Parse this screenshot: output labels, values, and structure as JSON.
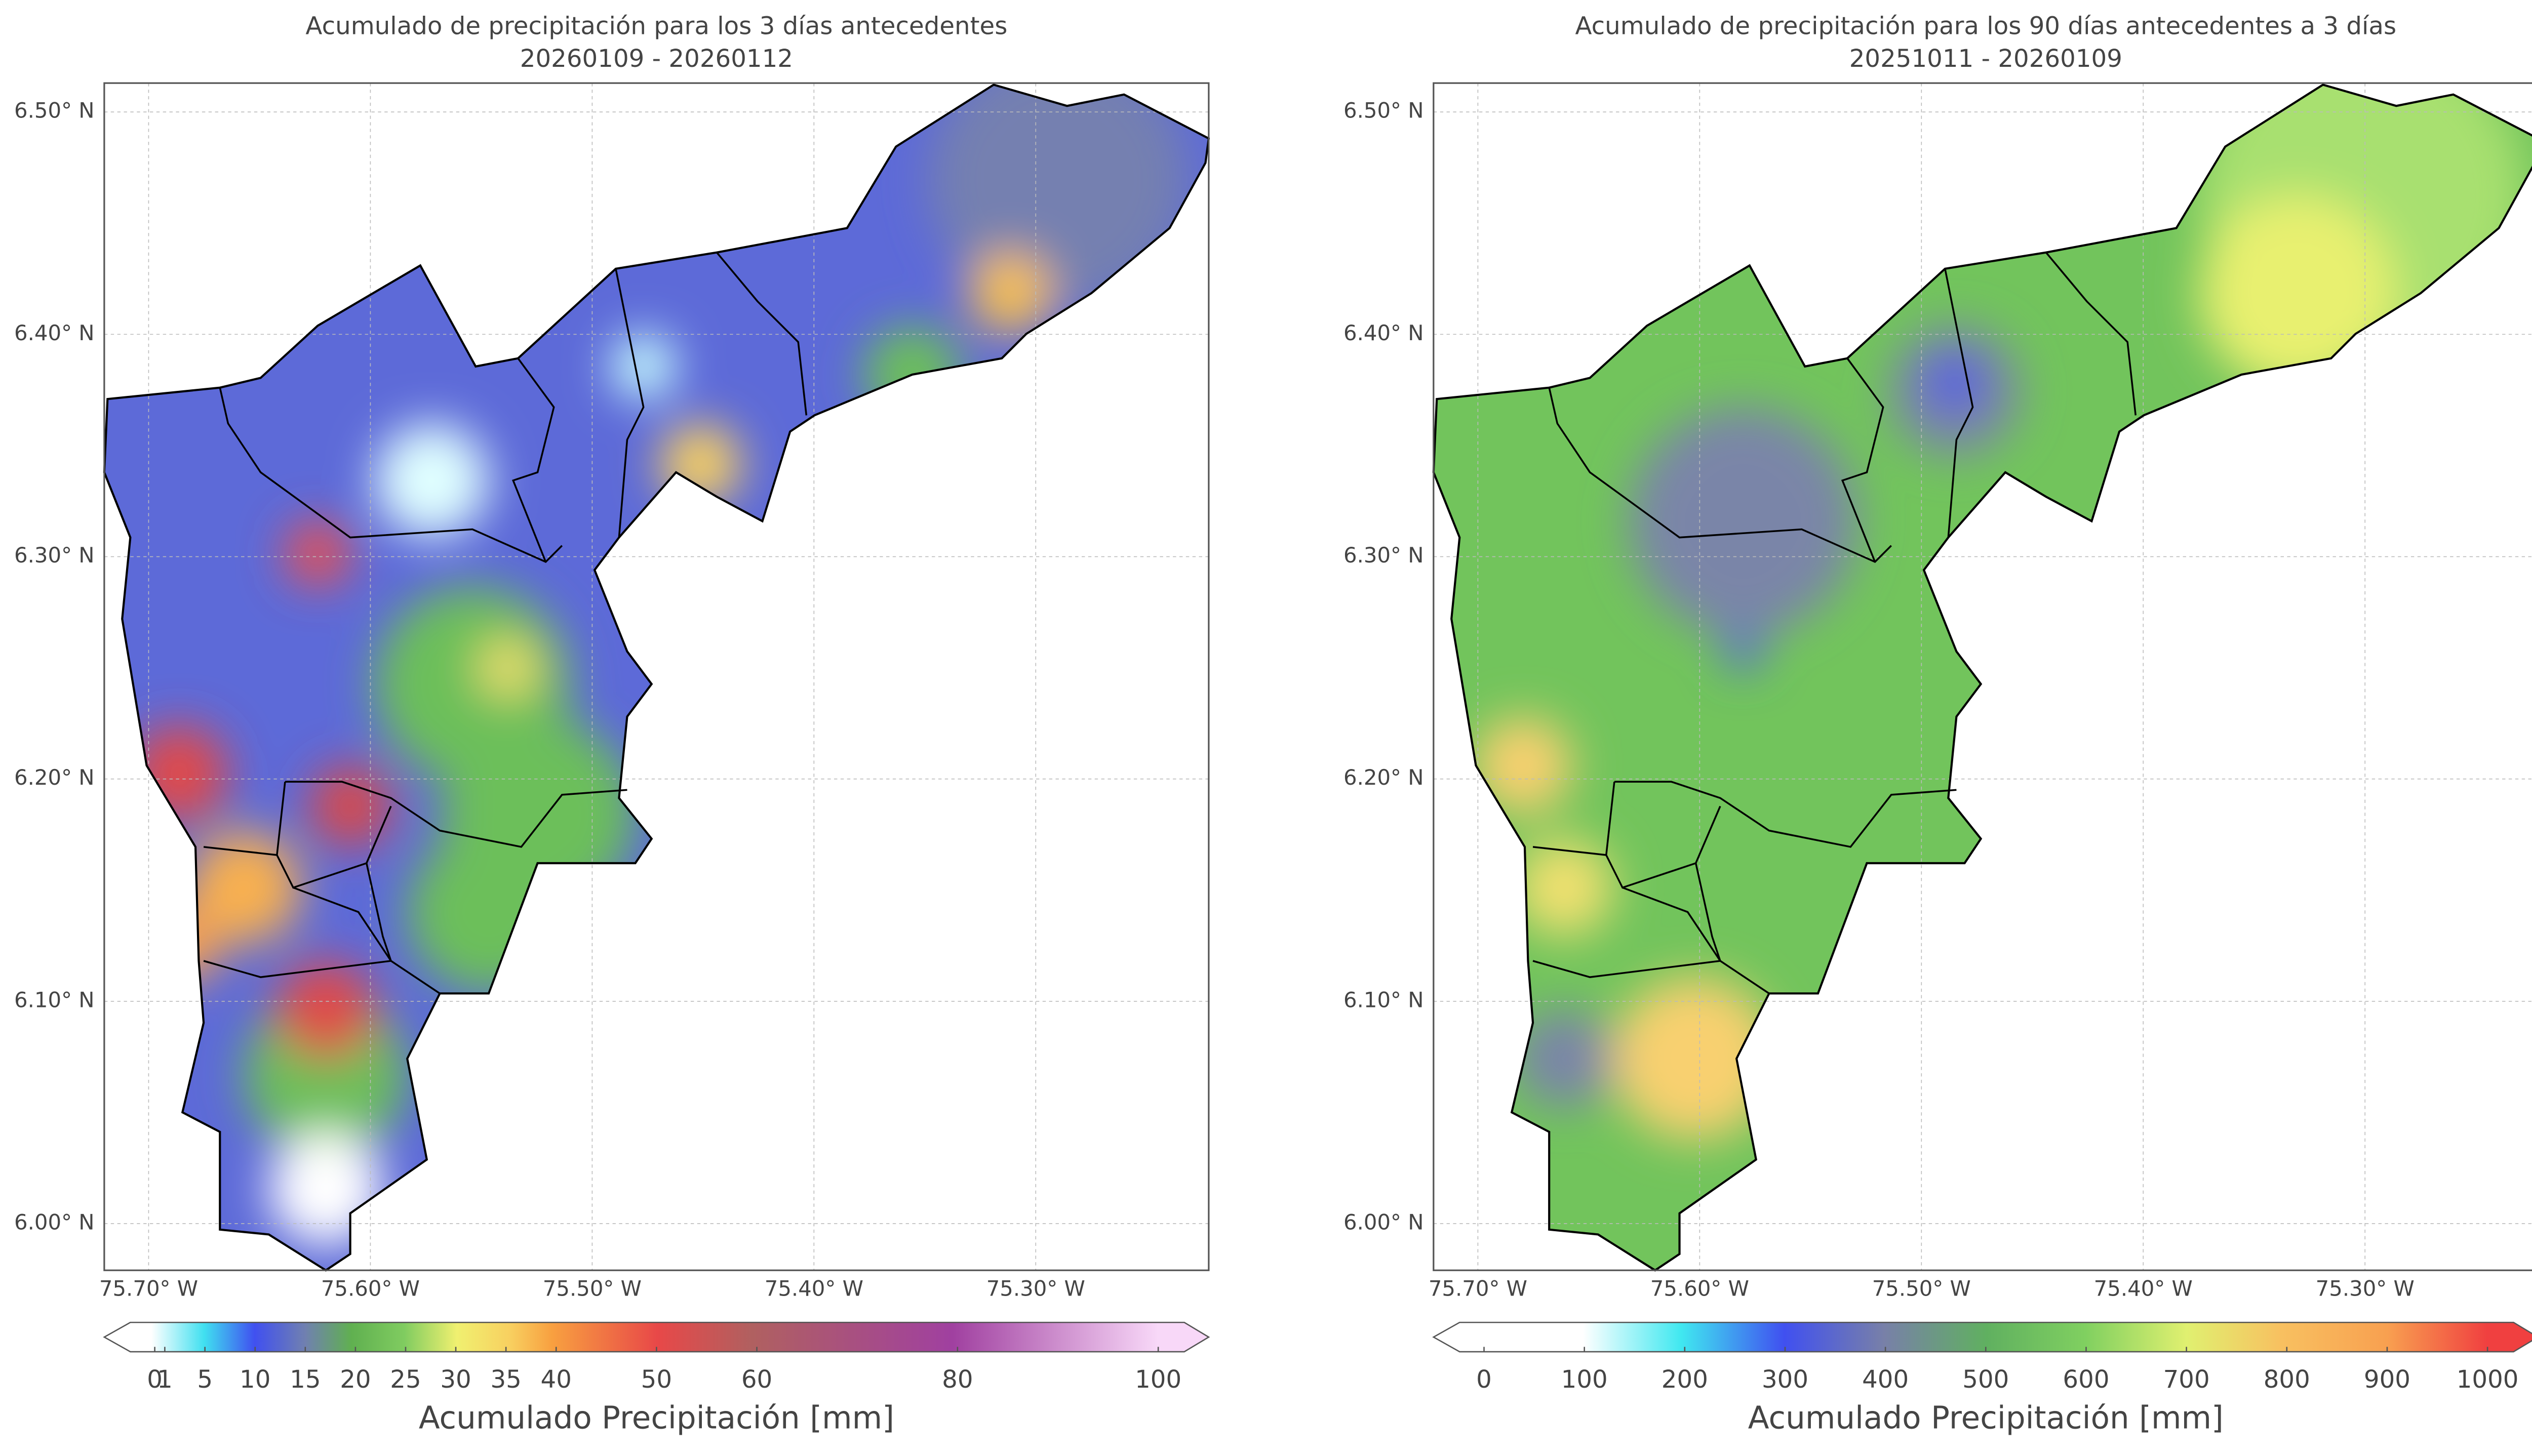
{
  "panels": [
    {
      "title": "Acumulado de precipitación para los 3 días antecedentes",
      "subtitle": "20260109 - 20260112",
      "xlim": [
        -75.72,
        -75.222
      ],
      "ylim": [
        5.979,
        6.513
      ],
      "xticks": [
        {
          "value": -75.7,
          "label": "75.70° W"
        },
        {
          "value": -75.6,
          "label": "75.60° W"
        },
        {
          "value": -75.5,
          "label": "75.50° W"
        },
        {
          "value": -75.4,
          "label": "75.40° W"
        },
        {
          "value": -75.3,
          "label": "75.30° W"
        }
      ],
      "yticks": [
        {
          "value": 6.0,
          "label": "6.00° N"
        },
        {
          "value": 6.1,
          "label": "6.10° N"
        },
        {
          "value": 6.2,
          "label": "6.20° N"
        },
        {
          "value": 6.3,
          "label": "6.30° N"
        },
        {
          "value": 6.4,
          "label": "6.40° N"
        },
        {
          "value": 6.5,
          "label": "6.50° N"
        }
      ],
      "colorbar": {
        "label": "Acumulado Precipitación [mm]",
        "lim": [
          0,
          100
        ],
        "ticks": [
          0,
          1,
          5,
          10,
          15,
          20,
          25,
          30,
          35,
          40,
          50,
          60,
          80,
          100
        ]
      }
    },
    {
      "title": "Acumulado de precipitación para los 90 días antecedentes a 3 días",
      "subtitle": "20251011 - 20260109",
      "xlim": [
        -75.72,
        -75.222
      ],
      "ylim": [
        5.979,
        6.513
      ],
      "xticks": [
        {
          "value": -75.7,
          "label": "75.70° W"
        },
        {
          "value": -75.6,
          "label": "75.60° W"
        },
        {
          "value": -75.5,
          "label": "75.50° W"
        },
        {
          "value": -75.4,
          "label": "75.40° W"
        },
        {
          "value": -75.3,
          "label": "75.30° W"
        }
      ],
      "yticks": [
        {
          "value": 6.0,
          "label": "6.00° N"
        },
        {
          "value": 6.1,
          "label": "6.10° N"
        },
        {
          "value": 6.2,
          "label": "6.20° N"
        },
        {
          "value": 6.3,
          "label": "6.30° N"
        },
        {
          "value": 6.4,
          "label": "6.40° N"
        },
        {
          "value": 6.5,
          "label": "6.50° N"
        }
      ],
      "colorbar": {
        "label": "Acumulado Precipitación [mm]",
        "lim": [
          0,
          1000
        ],
        "ticks": [
          0,
          100,
          200,
          300,
          400,
          500,
          600,
          700,
          800,
          900,
          1000
        ]
      }
    }
  ]
}
